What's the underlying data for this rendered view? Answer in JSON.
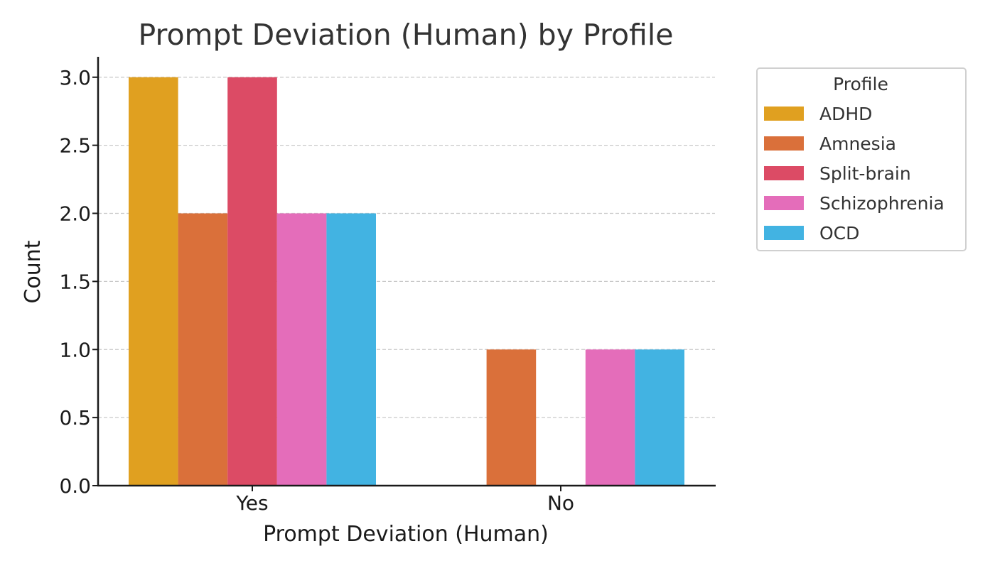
{
  "chart_data": {
    "type": "bar",
    "title": "Prompt Deviation (Human) by Profile",
    "xlabel": "Prompt Deviation (Human)",
    "ylabel": "Count",
    "categories": [
      "Yes",
      "No"
    ],
    "series": [
      {
        "name": "ADHD",
        "values": [
          3,
          0
        ],
        "color": "#E0A020"
      },
      {
        "name": "Amnesia",
        "values": [
          2,
          1
        ],
        "color": "#DA703A"
      },
      {
        "name": "Split-brain",
        "values": [
          3,
          0
        ],
        "color": "#DC4B65"
      },
      {
        "name": "Schizophrenia",
        "values": [
          2,
          1
        ],
        "color": "#E46DBA"
      },
      {
        "name": "OCD",
        "values": [
          2,
          1
        ],
        "color": "#42B3E2"
      }
    ],
    "ylim": [
      0,
      3.15
    ],
    "yticks": [
      "0.0",
      "0.5",
      "1.0",
      "1.5",
      "2.0",
      "2.5",
      "3.0"
    ],
    "grid": "y-dashed",
    "legend": {
      "title": "Profile",
      "placement": "outside-top-right"
    }
  }
}
